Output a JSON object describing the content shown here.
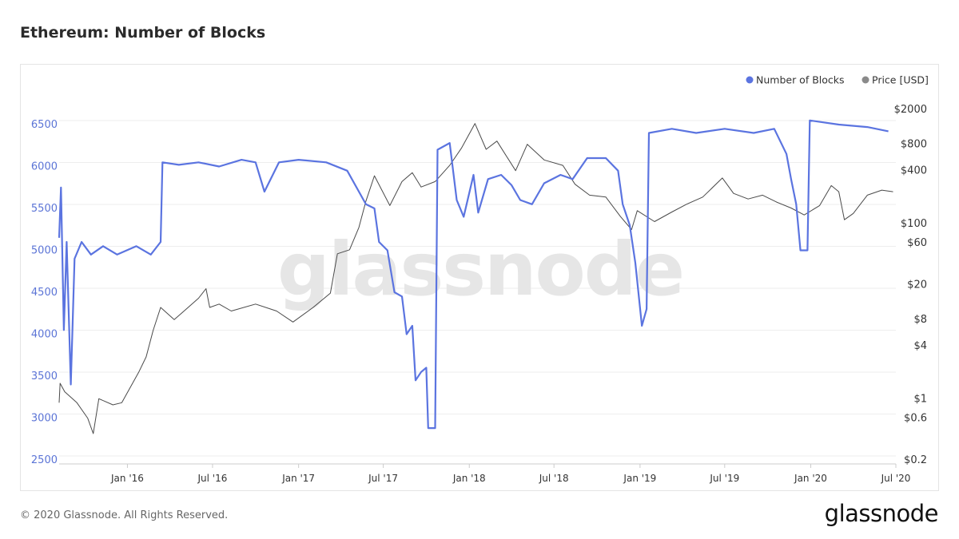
{
  "page": {
    "title": "Ethereum: Number of Blocks",
    "copyright": "© 2020 Glassnode. All Rights Reserved.",
    "brand": "glassnode",
    "watermark": "glassnode"
  },
  "colors": {
    "blocks": "#5b74e0",
    "price": "#4a4a4a",
    "legend_price_dot": "#8a8a8a",
    "grid": "#eeeeee"
  },
  "chart_data": {
    "type": "line",
    "title": "Ethereum: Number of Blocks",
    "legend": {
      "position": "top-right",
      "entries": [
        "Number of Blocks",
        "Price [USD]"
      ]
    },
    "x": {
      "ticks": [
        "Jan '16",
        "Jul '16",
        "Jan '17",
        "Jul '17",
        "Jan '18",
        "Jul '18",
        "Jan '19",
        "Jul '19",
        "Jan '20",
        "Jul '20"
      ],
      "tick_dates": [
        "2016-01-01",
        "2016-07-01",
        "2017-01-01",
        "2017-07-01",
        "2018-01-01",
        "2018-07-01",
        "2019-01-01",
        "2019-07-01",
        "2020-01-01",
        "2020-07-01"
      ],
      "range": [
        "2015-08-08",
        "2020-07-01"
      ]
    },
    "y_left": {
      "name": "Number of Blocks",
      "ticks": [
        "6500",
        "6000",
        "5500",
        "5000",
        "4500",
        "4000",
        "3500",
        "3000",
        "2500"
      ],
      "range": [
        2500,
        6500
      ]
    },
    "y_right": {
      "name": "Price [USD]",
      "scale": "log",
      "ticks": [
        "$2000",
        "$800",
        "$400",
        "$100",
        "$60",
        "$20",
        "$8",
        "$4",
        "$1",
        "$0.6",
        "$0.2"
      ],
      "tick_values": [
        2000,
        800,
        400,
        100,
        60,
        20,
        8,
        4,
        1,
        0.6,
        0.2
      ],
      "range": [
        0.2,
        2000
      ]
    },
    "grid": true,
    "series": [
      {
        "name": "Number of Blocks",
        "axis": "left",
        "points": [
          [
            "2015-08-08",
            5150
          ],
          [
            "2015-08-12",
            5750
          ],
          [
            "2015-08-18",
            4050
          ],
          [
            "2015-08-24",
            5100
          ],
          [
            "2015-09-02",
            3400
          ],
          [
            "2015-09-10",
            4900
          ],
          [
            "2015-09-25",
            5100
          ],
          [
            "2015-10-15",
            4950
          ],
          [
            "2015-11-10",
            5050
          ],
          [
            "2015-12-10",
            4950
          ],
          [
            "2016-01-20",
            5050
          ],
          [
            "2016-02-20",
            4950
          ],
          [
            "2016-03-12",
            5100
          ],
          [
            "2016-03-16",
            6050
          ],
          [
            "2016-04-20",
            6020
          ],
          [
            "2016-06-01",
            6050
          ],
          [
            "2016-07-15",
            6000
          ],
          [
            "2016-09-01",
            6080
          ],
          [
            "2016-10-01",
            6050
          ],
          [
            "2016-10-20",
            5700
          ],
          [
            "2016-11-20",
            6050
          ],
          [
            "2017-01-01",
            6080
          ],
          [
            "2017-03-01",
            6050
          ],
          [
            "2017-04-15",
            5950
          ],
          [
            "2017-05-10",
            5700
          ],
          [
            "2017-05-25",
            5550
          ],
          [
            "2017-06-12",
            5500
          ],
          [
            "2017-06-22",
            5100
          ],
          [
            "2017-07-10",
            5000
          ],
          [
            "2017-07-25",
            4500
          ],
          [
            "2017-08-10",
            4450
          ],
          [
            "2017-08-20",
            4000
          ],
          [
            "2017-09-01",
            4100
          ],
          [
            "2017-09-08",
            3450
          ],
          [
            "2017-09-20",
            3550
          ],
          [
            "2017-10-01",
            3600
          ],
          [
            "2017-10-05",
            2880
          ],
          [
            "2017-10-20",
            2880
          ],
          [
            "2017-10-25",
            6200
          ],
          [
            "2017-11-20",
            6280
          ],
          [
            "2017-12-05",
            5600
          ],
          [
            "2017-12-20",
            5400
          ],
          [
            "2018-01-10",
            5900
          ],
          [
            "2018-01-20",
            5450
          ],
          [
            "2018-02-10",
            5850
          ],
          [
            "2018-03-10",
            5900
          ],
          [
            "2018-04-01",
            5780
          ],
          [
            "2018-04-20",
            5600
          ],
          [
            "2018-05-15",
            5550
          ],
          [
            "2018-06-10",
            5800
          ],
          [
            "2018-07-15",
            5900
          ],
          [
            "2018-08-10",
            5850
          ],
          [
            "2018-09-10",
            6100
          ],
          [
            "2018-10-20",
            6100
          ],
          [
            "2018-11-15",
            5950
          ],
          [
            "2018-11-25",
            5550
          ],
          [
            "2018-12-10",
            5300
          ],
          [
            "2018-12-22",
            4850
          ],
          [
            "2019-01-05",
            4100
          ],
          [
            "2019-01-15",
            4300
          ],
          [
            "2019-01-20",
            6400
          ],
          [
            "2019-03-10",
            6450
          ],
          [
            "2019-05-01",
            6400
          ],
          [
            "2019-07-01",
            6450
          ],
          [
            "2019-09-01",
            6400
          ],
          [
            "2019-10-15",
            6450
          ],
          [
            "2019-11-10",
            6150
          ],
          [
            "2019-11-20",
            5850
          ],
          [
            "2019-12-01",
            5550
          ],
          [
            "2019-12-10",
            5000
          ],
          [
            "2019-12-25",
            5000
          ],
          [
            "2019-12-30",
            6550
          ],
          [
            "2020-03-01",
            6500
          ],
          [
            "2020-05-01",
            6470
          ],
          [
            "2020-06-15",
            6420
          ]
        ]
      },
      {
        "name": "Price [USD]",
        "axis": "right",
        "points": [
          [
            "2015-08-08",
            0.9
          ],
          [
            "2015-08-10",
            1.5
          ],
          [
            "2015-08-20",
            1.2
          ],
          [
            "2015-09-15",
            0.9
          ],
          [
            "2015-10-08",
            0.6
          ],
          [
            "2015-10-20",
            0.4
          ],
          [
            "2015-11-01",
            1.0
          ],
          [
            "2015-12-01",
            0.85
          ],
          [
            "2015-12-20",
            0.9
          ],
          [
            "2016-01-25",
            2.0
          ],
          [
            "2016-02-10",
            3.0
          ],
          [
            "2016-02-25",
            6.0
          ],
          [
            "2016-03-12",
            11.0
          ],
          [
            "2016-04-10",
            8.0
          ],
          [
            "2016-05-01",
            10.0
          ],
          [
            "2016-06-01",
            14.0
          ],
          [
            "2016-06-17",
            18.0
          ],
          [
            "2016-06-25",
            11.0
          ],
          [
            "2016-07-15",
            12.0
          ],
          [
            "2016-08-10",
            10.0
          ],
          [
            "2016-10-01",
            12.0
          ],
          [
            "2016-11-15",
            10.0
          ],
          [
            "2016-12-20",
            7.5
          ],
          [
            "2017-02-01",
            11.0
          ],
          [
            "2017-03-10",
            16.0
          ],
          [
            "2017-03-25",
            45.0
          ],
          [
            "2017-04-20",
            50.0
          ],
          [
            "2017-05-10",
            90.0
          ],
          [
            "2017-05-25",
            180.0
          ],
          [
            "2017-06-12",
            350.0
          ],
          [
            "2017-07-15",
            160.0
          ],
          [
            "2017-08-10",
            300.0
          ],
          [
            "2017-09-01",
            380.0
          ],
          [
            "2017-09-20",
            260.0
          ],
          [
            "2017-10-20",
            300.0
          ],
          [
            "2017-11-20",
            460.0
          ],
          [
            "2017-12-15",
            720.0
          ],
          [
            "2018-01-13",
            1380.0
          ],
          [
            "2018-02-06",
            700.0
          ],
          [
            "2018-03-01",
            870.0
          ],
          [
            "2018-04-10",
            400.0
          ],
          [
            "2018-05-05",
            800.0
          ],
          [
            "2018-06-10",
            530.0
          ],
          [
            "2018-07-20",
            460.0
          ],
          [
            "2018-08-15",
            280.0
          ],
          [
            "2018-09-15",
            210.0
          ],
          [
            "2018-10-20",
            200.0
          ],
          [
            "2018-11-20",
            120.0
          ],
          [
            "2018-12-14",
            85.0
          ],
          [
            "2018-12-26",
            140.0
          ],
          [
            "2019-02-01",
            105.0
          ],
          [
            "2019-03-10",
            135.0
          ],
          [
            "2019-04-10",
            165.0
          ],
          [
            "2019-05-15",
            200.0
          ],
          [
            "2019-06-26",
            330.0
          ],
          [
            "2019-07-20",
            220.0
          ],
          [
            "2019-08-20",
            190.0
          ],
          [
            "2019-09-20",
            210.0
          ],
          [
            "2019-10-20",
            175.0
          ],
          [
            "2019-11-20",
            150.0
          ],
          [
            "2019-12-18",
            125.0
          ],
          [
            "2020-01-20",
            160.0
          ],
          [
            "2020-02-14",
            270.0
          ],
          [
            "2020-03-01",
            230.0
          ],
          [
            "2020-03-13",
            110.0
          ],
          [
            "2020-04-01",
            130.0
          ],
          [
            "2020-05-01",
            210.0
          ],
          [
            "2020-06-01",
            240.0
          ],
          [
            "2020-06-25",
            230.0
          ]
        ]
      }
    ]
  }
}
